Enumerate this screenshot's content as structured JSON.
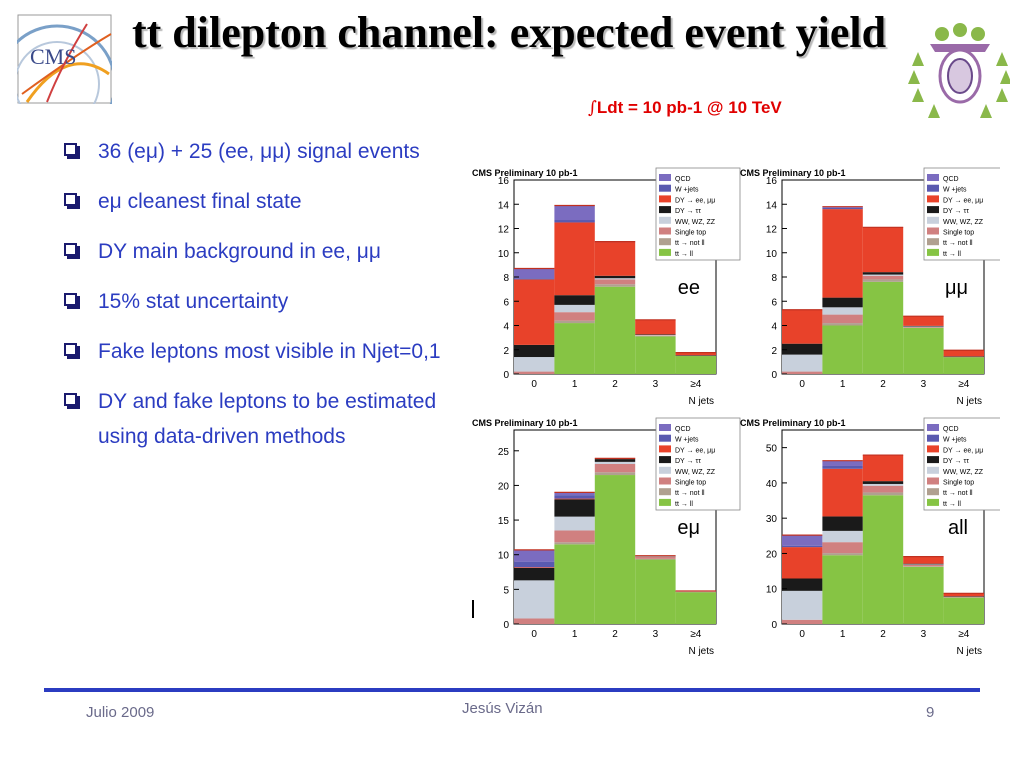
{
  "slide": {
    "title": "tt dilepton channel: expected event yield",
    "luminosity": {
      "integral": "∫",
      "text": "Ldt  = 10 pb-1 @ 10 TeV"
    },
    "bullets": [
      "36 (eμ) + 25 (ee, μμ) signal events",
      "eμ cleanest final state",
      "DY main background in ee, μμ",
      "15% stat uncertainty",
      "Fake leptons most visible in Njet=0,1",
      "DY and fake leptons to be estimated using data-driven methods"
    ],
    "logos": {
      "left": "CMS",
      "right": "university-crest"
    },
    "footer": {
      "date": "Julio 2009",
      "author": "Jesús Vizán",
      "page": "9"
    }
  },
  "colors": {
    "accent": "#2b3cc1",
    "lumi": "#e00000",
    "qcd": "#7b6cc0",
    "wjets": "#5a5ab0",
    "dy_ll": "#e8422a",
    "dy_tautau": "#1a1a1a",
    "diboson": "#c8d0dc",
    "singletop": "#d08080",
    "ttbar_other": "#b0a090",
    "ttbar_ll": "#86c444"
  },
  "chart_data": [
    {
      "type": "bar",
      "stacked": true,
      "panel": "ee",
      "header": "CMS Preliminary  10 pb-1",
      "categories": [
        "0",
        "1",
        "2",
        "3",
        "≥4"
      ],
      "xlabel": "N jets",
      "ylim": [
        0,
        16
      ],
      "yticks": [
        0,
        2,
        4,
        6,
        8,
        10,
        12,
        14,
        16
      ],
      "series": [
        {
          "name": "tt → ll",
          "values": [
            0,
            4.2,
            7.2,
            3.1,
            1.5
          ]
        },
        {
          "name": "tt → not ll",
          "values": [
            0,
            0.2,
            0.2,
            0.05,
            0.02
          ]
        },
        {
          "name": "Single top",
          "values": [
            0.2,
            0.7,
            0.4,
            0.05,
            0.02
          ]
        },
        {
          "name": "WW, WZ, ZZ",
          "values": [
            1.2,
            0.6,
            0.1,
            0.02,
            0
          ]
        },
        {
          "name": "DY → ττ",
          "values": [
            1.0,
            0.8,
            0.2,
            0.05,
            0.02
          ]
        },
        {
          "name": "DY → ee, μμ",
          "values": [
            5.4,
            6.0,
            2.8,
            1.2,
            0.2
          ]
        },
        {
          "name": "W +jets",
          "values": [
            0.1,
            0.2,
            0.02,
            0,
            0
          ]
        },
        {
          "name": "QCD",
          "values": [
            0.8,
            1.2,
            0,
            0,
            0
          ]
        }
      ]
    },
    {
      "type": "bar",
      "stacked": true,
      "panel": "μμ",
      "header": "CMS Preliminary  10 pb-1",
      "categories": [
        "0",
        "1",
        "2",
        "3",
        "≥4"
      ],
      "xlabel": "N jets",
      "ylim": [
        0,
        16
      ],
      "yticks": [
        0,
        2,
        4,
        6,
        8,
        10,
        12,
        14,
        16
      ],
      "series": [
        {
          "name": "tt → ll",
          "values": [
            0,
            4.0,
            7.6,
            3.8,
            1.4
          ]
        },
        {
          "name": "tt → not ll",
          "values": [
            0,
            0.2,
            0.2,
            0.05,
            0.02
          ]
        },
        {
          "name": "Single top",
          "values": [
            0.2,
            0.7,
            0.3,
            0.05,
            0.02
          ]
        },
        {
          "name": "WW, WZ, ZZ",
          "values": [
            1.4,
            0.6,
            0.1,
            0.02,
            0
          ]
        },
        {
          "name": "DY → ττ",
          "values": [
            0.9,
            0.8,
            0.2,
            0.05,
            0.02
          ]
        },
        {
          "name": "DY → ee, μμ",
          "values": [
            2.8,
            7.3,
            3.7,
            0.8,
            0.5
          ]
        },
        {
          "name": "W +jets",
          "values": [
            0,
            0.1,
            0,
            0,
            0
          ]
        },
        {
          "name": "QCD",
          "values": [
            0,
            0.1,
            0,
            0,
            0
          ]
        }
      ]
    },
    {
      "type": "bar",
      "stacked": true,
      "panel": "eμ",
      "header": "CMS Preliminary  10 pb-1",
      "categories": [
        "0",
        "1",
        "2",
        "3",
        "≥4"
      ],
      "xlabel": "N jets",
      "ylim": [
        0,
        28
      ],
      "yticks": [
        0,
        5,
        10,
        15,
        20,
        25
      ],
      "series": [
        {
          "name": "tt → ll",
          "values": [
            0,
            11.5,
            21.5,
            9.3,
            4.6
          ]
        },
        {
          "name": "tt → not ll",
          "values": [
            0,
            0.3,
            0.4,
            0.1,
            0.05
          ]
        },
        {
          "name": "Single top",
          "values": [
            0.8,
            1.7,
            1.2,
            0.3,
            0.1
          ]
        },
        {
          "name": "WW, WZ, ZZ",
          "values": [
            5.5,
            2.0,
            0.3,
            0.05,
            0
          ]
        },
        {
          "name": "DY → ττ",
          "values": [
            1.8,
            2.5,
            0.4,
            0.1,
            0.02
          ]
        },
        {
          "name": "DY → ee, μμ",
          "values": [
            0.1,
            0.1,
            0.1,
            0,
            0
          ]
        },
        {
          "name": "W +jets",
          "values": [
            0.8,
            0.5,
            0,
            0,
            0
          ]
        },
        {
          "name": "QCD",
          "values": [
            1.7,
            0.4,
            0,
            0,
            0
          ]
        }
      ]
    },
    {
      "type": "bar",
      "stacked": true,
      "panel": "all",
      "header": "CMS Preliminary  10 pb-1",
      "categories": [
        "0",
        "1",
        "2",
        "3",
        "≥4"
      ],
      "xlabel": "N jets",
      "ylim": [
        0,
        55
      ],
      "yticks": [
        0,
        10,
        20,
        30,
        40,
        50
      ],
      "series": [
        {
          "name": "tt → ll",
          "values": [
            0,
            19.5,
            36.5,
            16.2,
            7.5
          ]
        },
        {
          "name": "tt → not ll",
          "values": [
            0,
            0.6,
            0.8,
            0.2,
            0.1
          ]
        },
        {
          "name": "Single top",
          "values": [
            1.2,
            3.1,
            1.9,
            0.4,
            0.2
          ]
        },
        {
          "name": "WW, WZ, ZZ",
          "values": [
            8.2,
            3.2,
            0.5,
            0.1,
            0
          ]
        },
        {
          "name": "DY → ττ",
          "values": [
            3.5,
            4.1,
            0.8,
            0.2,
            0.1
          ]
        },
        {
          "name": "DY → ee, μμ",
          "values": [
            8.9,
            13.5,
            7.4,
            2.0,
            0.8
          ]
        },
        {
          "name": "W +jets",
          "values": [
            0.4,
            0.8,
            0,
            0,
            0
          ]
        },
        {
          "name": "QCD",
          "values": [
            3.0,
            1.5,
            0,
            0,
            0
          ]
        }
      ]
    }
  ]
}
